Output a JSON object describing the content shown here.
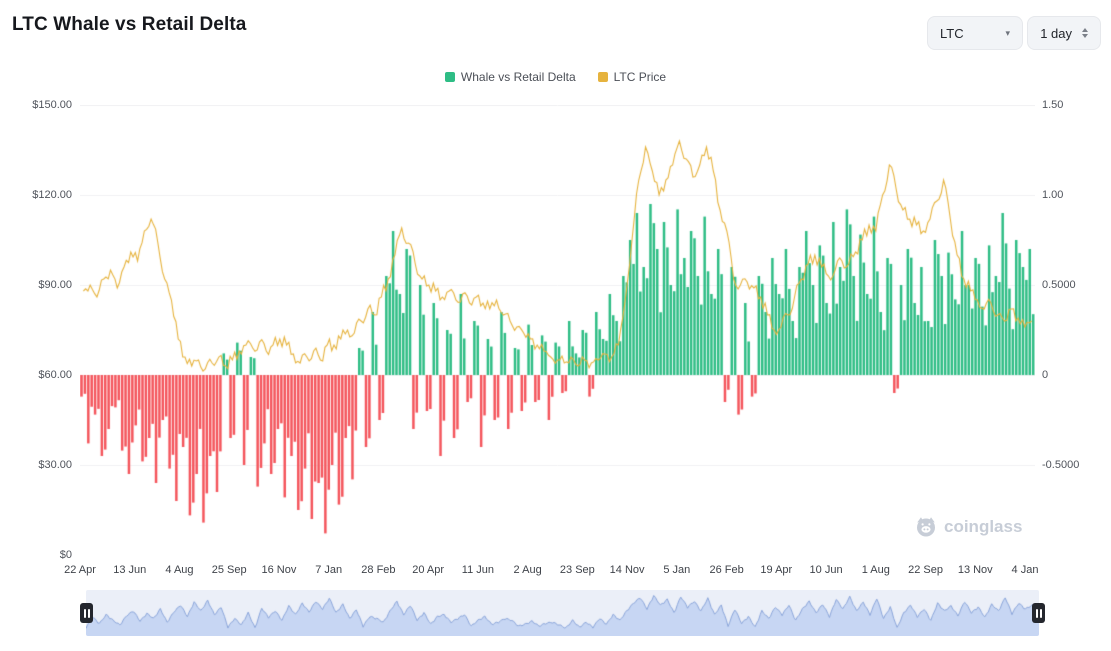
{
  "header": {
    "title": "LTC Whale vs Retail Delta"
  },
  "controls": {
    "symbol": {
      "value": "LTC"
    },
    "interval": {
      "value": "1 day"
    }
  },
  "legend": [
    {
      "label": "Whale vs Retail Delta",
      "color": "#2ebd85"
    },
    {
      "label": "LTC Price",
      "color": "#e6b33e"
    }
  ],
  "watermark": {
    "text": "coinglass"
  },
  "chart_data": {
    "type": "bar",
    "title": "LTC Whale vs Retail Delta",
    "legend_position": "top",
    "grid": true,
    "x_labels": [
      "22 Apr",
      "13 Jun",
      "4 Aug",
      "25 Sep",
      "16 Nov",
      "7 Jan",
      "28 Feb",
      "20 Apr",
      "11 Jun",
      "2 Aug",
      "23 Sep",
      "14 Nov",
      "5 Jan",
      "26 Feb",
      "19 Apr",
      "10 Jun",
      "1 Aug",
      "22 Sep",
      "13 Nov",
      "4 Jan"
    ],
    "axes": {
      "left": {
        "ticks": [
          "$150.00",
          "$120.00",
          "$90.00",
          "$60.00",
          "$30.00",
          "$0"
        ],
        "range": [
          0,
          150
        ]
      },
      "right": {
        "ticks": [
          "1.50",
          "1.00",
          "0.5000",
          "0",
          "-0.5000"
        ],
        "range": [
          -1.0,
          1.5
        ]
      }
    },
    "series": [
      {
        "name": "Whale vs Retail Delta",
        "type": "bar",
        "axis": "right",
        "color_positive": "#2ebd85",
        "color_negative": "#f4555c",
        "values": [
          -0.12,
          -0.38,
          -0.22,
          -0.45,
          -0.3,
          -0.18,
          -0.42,
          -0.55,
          -0.28,
          -0.48,
          -0.35,
          -0.6,
          -0.25,
          -0.52,
          -0.7,
          -0.4,
          -0.78,
          -0.55,
          -0.82,
          -0.45,
          -0.65,
          0.12,
          -0.35,
          0.18,
          -0.5,
          0.1,
          -0.62,
          -0.38,
          -0.55,
          -0.3,
          -0.68,
          -0.45,
          -0.75,
          -0.52,
          -0.8,
          -0.6,
          -0.88,
          -0.5,
          -0.72,
          -0.35,
          -0.58,
          0.15,
          -0.4,
          0.35,
          -0.25,
          0.55,
          0.8,
          0.45,
          0.7,
          -0.3,
          0.5,
          -0.2,
          0.4,
          -0.45,
          0.25,
          -0.35,
          0.45,
          -0.15,
          0.3,
          -0.4,
          0.2,
          -0.25,
          0.35,
          -0.3,
          0.15,
          -0.2,
          0.28,
          -0.15,
          0.22,
          -0.25,
          0.18,
          -0.1,
          0.3,
          0.12,
          0.25,
          -0.12,
          0.35,
          0.2,
          0.45,
          0.3,
          0.55,
          0.75,
          0.9,
          0.6,
          0.95,
          0.7,
          0.85,
          0.5,
          0.92,
          0.65,
          0.8,
          0.55,
          0.88,
          0.45,
          0.7,
          -0.15,
          0.6,
          -0.22,
          0.4,
          -0.12,
          0.55,
          0.35,
          0.65,
          0.45,
          0.7,
          0.3,
          0.6,
          0.8,
          0.5,
          0.72,
          0.4,
          0.85,
          0.6,
          0.92,
          0.55,
          0.78,
          0.45,
          0.88,
          0.35,
          0.65,
          -0.1,
          0.5,
          0.7,
          0.4,
          0.6,
          0.3,
          0.75,
          0.55,
          0.68,
          0.42,
          0.8,
          0.5,
          0.65,
          0.38,
          0.72,
          0.55,
          0.9,
          0.48,
          0.75,
          0.6,
          0.7
        ]
      },
      {
        "name": "LTC Price",
        "type": "line",
        "axis": "left",
        "color": "#e6b33e",
        "values": [
          88,
          90,
          86,
          92,
          95,
          89,
          96,
          101,
          98,
          108,
          112,
          104,
          92,
          85,
          72,
          66,
          63,
          65,
          62,
          64,
          66,
          63,
          65,
          68,
          70,
          69,
          71,
          68,
          70,
          72,
          70,
          67,
          64,
          66,
          68,
          65,
          70,
          70,
          72,
          75,
          74,
          78,
          82,
          80,
          86,
          92,
          100,
          109,
          104,
          97,
          92,
          90,
          88,
          86,
          88,
          85,
          87,
          84,
          86,
          84,
          82,
          85,
          80,
          78,
          76,
          74,
          72,
          70,
          68,
          66,
          65,
          64,
          66,
          63,
          65,
          64,
          65,
          67,
          66,
          70,
          85,
          105,
          125,
          136,
          128,
          120,
          125,
          130,
          138,
          132,
          126,
          130,
          136,
          128,
          115,
          108,
          92,
          90,
          91,
          89,
          86,
          80,
          75,
          76,
          80,
          86,
          92,
          97,
          100,
          96,
          93,
          95,
          98,
          97,
          101,
          105,
          110,
          108,
          120,
          130,
          122,
          115,
          112,
          110,
          108,
          112,
          118,
          125,
          112,
          100,
          92,
          88,
          85,
          82,
          84,
          80,
          78,
          82,
          79,
          76,
          78
        ]
      }
    ]
  }
}
